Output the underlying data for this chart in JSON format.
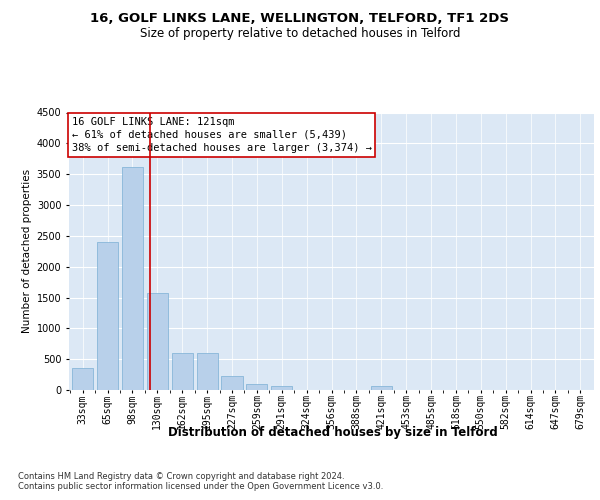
{
  "title1": "16, GOLF LINKS LANE, WELLINGTON, TELFORD, TF1 2DS",
  "title2": "Size of property relative to detached houses in Telford",
  "xlabel": "Distribution of detached houses by size in Telford",
  "ylabel": "Number of detached properties",
  "footnote1": "Contains HM Land Registry data © Crown copyright and database right 2024.",
  "footnote2": "Contains public sector information licensed under the Open Government Licence v3.0.",
  "annotation_line1": "16 GOLF LINKS LANE: 121sqm",
  "annotation_line2": "← 61% of detached houses are smaller (5,439)",
  "annotation_line3": "38% of semi-detached houses are larger (3,374) →",
  "categories": [
    "33sqm",
    "65sqm",
    "98sqm",
    "130sqm",
    "162sqm",
    "195sqm",
    "227sqm",
    "259sqm",
    "291sqm",
    "324sqm",
    "356sqm",
    "388sqm",
    "421sqm",
    "453sqm",
    "485sqm",
    "518sqm",
    "550sqm",
    "582sqm",
    "614sqm",
    "647sqm",
    "679sqm"
  ],
  "values": [
    350,
    2400,
    3620,
    1580,
    600,
    600,
    220,
    100,
    60,
    0,
    0,
    0,
    60,
    0,
    0,
    0,
    0,
    0,
    0,
    0,
    0
  ],
  "bar_color": "#b8d0ea",
  "bar_edge_color": "#7aafd4",
  "vline_color": "#cc0000",
  "vline_pos": 2.72,
  "ylim": [
    0,
    4500
  ],
  "yticks": [
    0,
    500,
    1000,
    1500,
    2000,
    2500,
    3000,
    3500,
    4000,
    4500
  ],
  "bg_color": "#dce8f5",
  "grid_color": "#ffffff",
  "annotation_box_facecolor": "#ffffff",
  "annotation_box_edgecolor": "#cc0000",
  "title1_fontsize": 9.5,
  "title2_fontsize": 8.5,
  "xlabel_fontsize": 8.5,
  "ylabel_fontsize": 7.5,
  "tick_fontsize": 7,
  "annotation_fontsize": 7.5,
  "footnote_fontsize": 6
}
